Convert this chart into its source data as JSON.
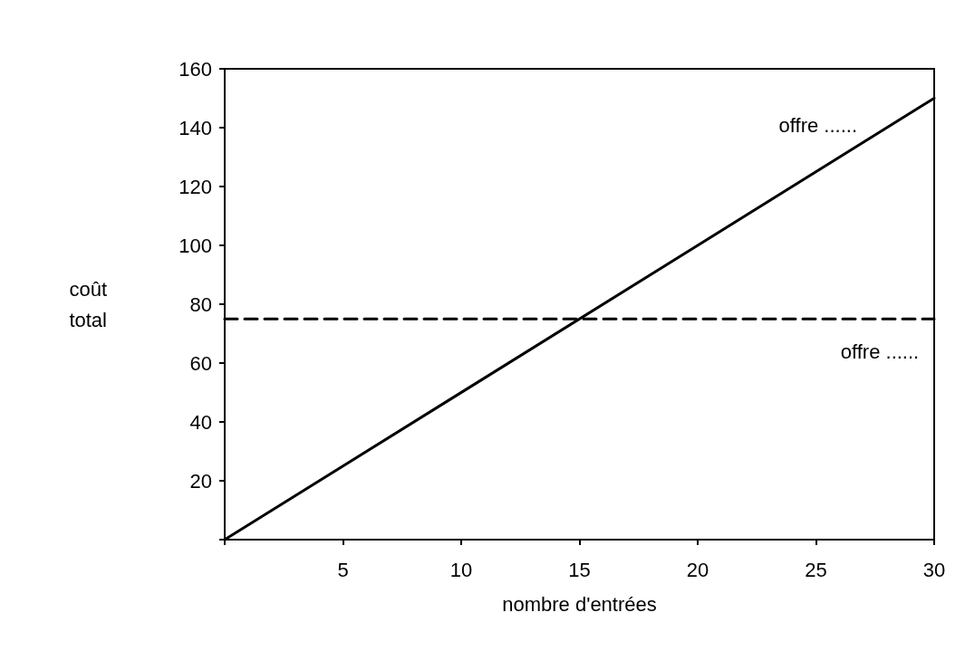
{
  "chart_data": {
    "type": "line",
    "xlabel": "nombre d'entrées",
    "ylabel": "coût total",
    "xlim": [
      0,
      30
    ],
    "xticks": [
      {
        "value": 0,
        "label": null
      },
      5,
      10,
      15,
      20,
      25,
      30
    ],
    "ylim": [
      0,
      160
    ],
    "yticks": [
      {
        "value": 0,
        "label": null
      },
      20,
      40,
      60,
      80,
      100,
      120,
      140,
      160
    ],
    "grid": false,
    "legend": false,
    "marker": "none",
    "x": [
      0,
      30
    ],
    "series": [
      {
        "name": "offre ......",
        "color": "#000000",
        "values": [
          0,
          150
        ],
        "line_style": "solid"
      },
      {
        "name": "offre ......",
        "color": "#000000",
        "values": [
          75,
          75
        ],
        "line_style": "dashed"
      }
    ]
  }
}
